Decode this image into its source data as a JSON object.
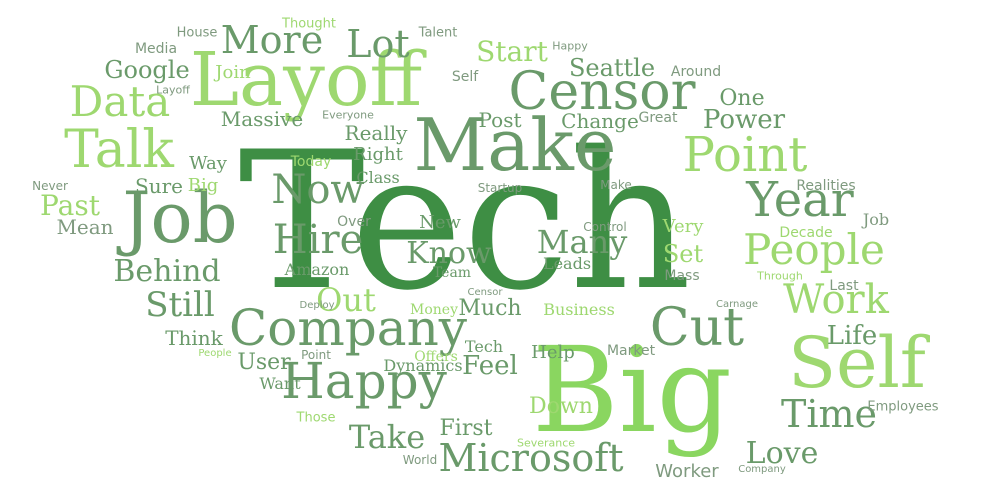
{
  "colors": {
    "dark": "#3e8e44",
    "mid": "#6a9a6a",
    "gray": "#7f9a7f",
    "light": "#9ed870",
    "lime": "#8ad660"
  },
  "words": [
    {
      "text": "Tech",
      "tone": "dark"
    },
    {
      "text": "Big",
      "tone": "lime"
    },
    {
      "text": "Layoff",
      "tone": "light"
    },
    {
      "text": "Make",
      "tone": "mid"
    },
    {
      "text": "Job",
      "tone": "mid"
    },
    {
      "text": "Self",
      "tone": "light"
    },
    {
      "text": "Censor",
      "tone": "mid"
    },
    {
      "text": "Company",
      "tone": "mid"
    },
    {
      "text": "Happy",
      "tone": "mid"
    },
    {
      "text": "Point",
      "tone": "light"
    },
    {
      "text": "Talk",
      "tone": "light"
    },
    {
      "text": "Year",
      "tone": "mid"
    },
    {
      "text": "Cut",
      "tone": "mid"
    },
    {
      "text": "People",
      "tone": "light"
    },
    {
      "text": "Work",
      "tone": "light"
    },
    {
      "text": "Microsoft",
      "tone": "mid"
    },
    {
      "text": "Now",
      "tone": "mid"
    },
    {
      "text": "Hire",
      "tone": "mid"
    },
    {
      "text": "Data",
      "tone": "light"
    },
    {
      "text": "More",
      "tone": "mid"
    },
    {
      "text": "Lot",
      "tone": "mid"
    },
    {
      "text": "Time",
      "tone": "mid"
    },
    {
      "text": "Still",
      "tone": "mid"
    },
    {
      "text": "Behind",
      "tone": "mid"
    },
    {
      "text": "Many",
      "tone": "mid"
    },
    {
      "text": "Out",
      "tone": "light"
    },
    {
      "text": "Take",
      "tone": "mid"
    },
    {
      "text": "Know",
      "tone": "mid"
    },
    {
      "text": "Love",
      "tone": "mid"
    },
    {
      "text": "Power",
      "tone": "mid"
    },
    {
      "text": "Start",
      "tone": "light"
    },
    {
      "text": "Seattle",
      "tone": "mid"
    },
    {
      "text": "Google",
      "tone": "mid"
    },
    {
      "text": "One",
      "tone": "mid"
    },
    {
      "text": "Past",
      "tone": "light"
    },
    {
      "text": "Life",
      "tone": "mid"
    },
    {
      "text": "Feel",
      "tone": "mid"
    },
    {
      "text": "User",
      "tone": "mid"
    },
    {
      "text": "Much",
      "tone": "mid"
    },
    {
      "text": "First",
      "tone": "mid"
    },
    {
      "text": "Set",
      "tone": "light"
    },
    {
      "text": "Down",
      "tone": "light"
    },
    {
      "text": "Worker",
      "tone": "gray"
    },
    {
      "text": "Really",
      "tone": "mid"
    },
    {
      "text": "Change",
      "tone": "mid"
    },
    {
      "text": "Post",
      "tone": "mid"
    },
    {
      "text": "Sure",
      "tone": "mid"
    },
    {
      "text": "Mean",
      "tone": "gray"
    },
    {
      "text": "Think",
      "tone": "mid"
    },
    {
      "text": "Help",
      "tone": "mid"
    },
    {
      "text": "Very",
      "tone": "light"
    },
    {
      "text": "Massive",
      "tone": "mid"
    },
    {
      "text": "Join",
      "tone": "light"
    },
    {
      "text": "Right",
      "tone": "mid"
    },
    {
      "text": "New",
      "tone": "mid"
    },
    {
      "text": "Class",
      "tone": "mid"
    },
    {
      "text": "Way",
      "tone": "mid"
    },
    {
      "text": "Big",
      "tone": "light"
    },
    {
      "text": "Today",
      "tone": "light"
    },
    {
      "text": "Amazon",
      "tone": "mid"
    },
    {
      "text": "Want",
      "tone": "mid"
    },
    {
      "text": "Tech",
      "tone": "mid"
    },
    {
      "text": "Dynamics",
      "tone": "mid"
    },
    {
      "text": "Leads",
      "tone": "mid"
    },
    {
      "text": "Team",
      "tone": "mid"
    },
    {
      "text": "Business",
      "tone": "light"
    },
    {
      "text": "Money",
      "tone": "light"
    },
    {
      "text": "Offers",
      "tone": "light"
    },
    {
      "text": "Market",
      "tone": "gray"
    },
    {
      "text": "Realities",
      "tone": "gray"
    },
    {
      "text": "Decade",
      "tone": "light"
    },
    {
      "text": "Job",
      "tone": "gray"
    },
    {
      "text": "Last",
      "tone": "gray"
    },
    {
      "text": "Mass",
      "tone": "gray"
    },
    {
      "text": "Employees",
      "tone": "gray"
    },
    {
      "text": "Great",
      "tone": "gray"
    },
    {
      "text": "Around",
      "tone": "gray"
    },
    {
      "text": "Media",
      "tone": "gray"
    },
    {
      "text": "House",
      "tone": "gray"
    },
    {
      "text": "Thought",
      "tone": "light"
    },
    {
      "text": "Talent",
      "tone": "gray"
    },
    {
      "text": "Happy",
      "tone": "gray"
    },
    {
      "text": "Layoff",
      "tone": "gray"
    },
    {
      "text": "Everyone",
      "tone": "gray"
    },
    {
      "text": "Never",
      "tone": "gray"
    },
    {
      "text": "Startup",
      "tone": "gray"
    },
    {
      "text": "Make",
      "tone": "gray"
    },
    {
      "text": "Control",
      "tone": "gray"
    },
    {
      "text": "Over",
      "tone": "gray"
    },
    {
      "text": "Through",
      "tone": "light"
    },
    {
      "text": "Carnage",
      "tone": "gray"
    },
    {
      "text": "Deploy",
      "tone": "gray"
    },
    {
      "text": "Censor",
      "tone": "gray"
    },
    {
      "text": "People",
      "tone": "light"
    },
    {
      "text": "Point",
      "tone": "gray"
    },
    {
      "text": "Those",
      "tone": "light"
    },
    {
      "text": "Severance",
      "tone": "light"
    },
    {
      "text": "World",
      "tone": "gray"
    },
    {
      "text": "Company",
      "tone": "gray"
    },
    {
      "text": "Self",
      "tone": "gray"
    }
  ]
}
